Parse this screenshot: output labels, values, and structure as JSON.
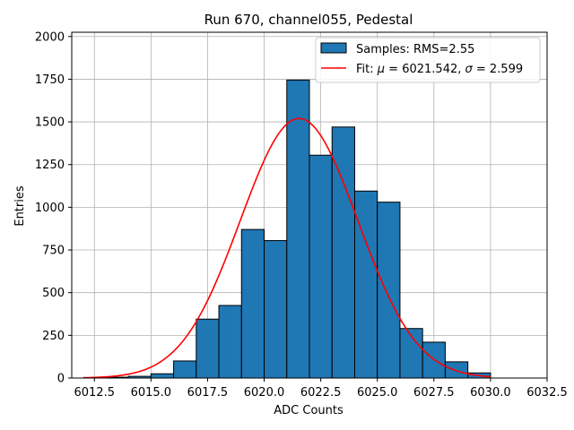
{
  "chart_data": {
    "type": "bar",
    "title": "Run 670, channel055, Pedestal",
    "xlabel": "ADC Counts",
    "ylabel": "Entries",
    "xlim": [
      6011.5,
      6032.5
    ],
    "ylim": [
      0,
      2025
    ],
    "xticks": [
      6012.5,
      6015.0,
      6017.5,
      6020.0,
      6022.5,
      6025.0,
      6027.5,
      6030.0,
      6032.5
    ],
    "xtick_labels": [
      "6012.5",
      "6015.0",
      "6017.5",
      "6020.0",
      "6022.5",
      "6025.0",
      "6027.5",
      "6030.0",
      "6032.5"
    ],
    "yticks": [
      0,
      250,
      500,
      750,
      1000,
      1250,
      1500,
      1750,
      2000
    ],
    "ytick_labels": [
      "0",
      "250",
      "500",
      "750",
      "1000",
      "1250",
      "1500",
      "1750",
      "2000"
    ],
    "grid": true,
    "legend_position": "top-right",
    "histogram": {
      "name": "Samples: RMS=2.55",
      "color": "#1f77b4",
      "edge_color": "#000000",
      "bin_edges": [
        6013,
        6014,
        6015,
        6016,
        6017,
        6018,
        6019,
        6020,
        6021,
        6022,
        6023,
        6024,
        6025,
        6026,
        6027,
        6028,
        6029,
        6030
      ],
      "counts": [
        5,
        10,
        25,
        100,
        345,
        425,
        870,
        805,
        1745,
        1305,
        1470,
        1095,
        1030,
        290,
        210,
        95,
        30,
        15
      ]
    },
    "fit": {
      "name": "Fit: μ = 6021.542, σ = 2.599",
      "legend_prefix": "Fit: ",
      "mu_symbol": "μ",
      "mid_text": " = 6021.542, ",
      "sigma_symbol": "σ",
      "end_text": " = 2.599",
      "color": "#ff0000",
      "mu": 6021.542,
      "sigma": 2.599,
      "amplitude": 1520,
      "x_range": [
        6012.0,
        6030.0
      ]
    }
  }
}
